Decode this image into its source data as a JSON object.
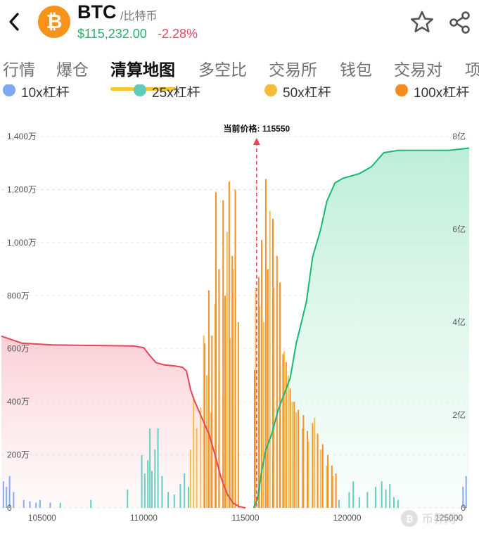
{
  "header": {
    "symbol": "BTC",
    "name": "/比特币",
    "price": "$115,232.00",
    "change": "-2.28%",
    "coin_color": "#f7931a",
    "up_color": "#27b06e",
    "down_color": "#e84a5f",
    "icons": [
      "back-icon",
      "bitcoin-icon",
      "star-icon",
      "share-icon"
    ]
  },
  "tabs": {
    "items": [
      "行情",
      "爆仓",
      "清算地图",
      "多空比",
      "交易所",
      "钱包",
      "交易对",
      "项"
    ],
    "active": "清算地图",
    "active_color": "#f5c832"
  },
  "legend": [
    {
      "label": "10x杠杆",
      "color": "#7fa8f0"
    },
    {
      "label": "25x杠杆",
      "color": "#5fcbbf"
    },
    {
      "label": "50x杠杆",
      "color": "#f6bb3c"
    },
    {
      "label": "100x杠杆",
      "color": "#f58a1e"
    }
  ],
  "chart_data": {
    "type": "bar",
    "current_price_label": "当前价格: 115550",
    "current_price": 115550,
    "x_ticks": [
      "105000",
      "110000",
      "115000",
      "120000",
      "125000"
    ],
    "xlim": [
      103000,
      126000
    ],
    "y_left_ticks": [
      "0",
      "200万",
      "400万",
      "600万",
      "800万",
      "1,000万",
      "1,200万",
      "1,400万"
    ],
    "ylim_left": [
      0,
      14000000
    ],
    "y_right_ticks": [
      "0",
      "2亿",
      "4亿",
      "6亿",
      "8亿"
    ],
    "ylim_right": [
      0,
      800000000
    ],
    "grid": true,
    "legend_position": "top",
    "cumulative_long_color": "#e8455a",
    "cumulative_short_color": "#19b874",
    "cumulative_long": [
      [
        103000,
        370000000
      ],
      [
        104000,
        355000000
      ],
      [
        105500,
        351000000
      ],
      [
        107500,
        350000000
      ],
      [
        109500,
        349000000
      ],
      [
        110000,
        345000000
      ],
      [
        110300,
        328000000
      ],
      [
        110600,
        313000000
      ],
      [
        111000,
        308000000
      ],
      [
        111500,
        306000000
      ],
      [
        111900,
        303000000
      ],
      [
        112100,
        295000000
      ],
      [
        112300,
        255000000
      ],
      [
        112500,
        230000000
      ],
      [
        112800,
        200000000
      ],
      [
        113200,
        160000000
      ],
      [
        113500,
        115000000
      ],
      [
        113800,
        65000000
      ],
      [
        114100,
        30000000
      ],
      [
        114400,
        10000000
      ],
      [
        114700,
        3000000
      ],
      [
        115000,
        0
      ]
    ],
    "cumulative_short": [
      [
        115400,
        0
      ],
      [
        115600,
        20000000
      ],
      [
        115800,
        80000000
      ],
      [
        116000,
        125000000
      ],
      [
        116300,
        160000000
      ],
      [
        116600,
        210000000
      ],
      [
        116900,
        245000000
      ],
      [
        117200,
        280000000
      ],
      [
        117500,
        355000000
      ],
      [
        117700,
        390000000
      ],
      [
        118000,
        445000000
      ],
      [
        118300,
        540000000
      ],
      [
        118700,
        600000000
      ],
      [
        119000,
        660000000
      ],
      [
        119400,
        700000000
      ],
      [
        119800,
        710000000
      ],
      [
        120600,
        720000000
      ],
      [
        121200,
        735000000
      ],
      [
        121800,
        765000000
      ],
      [
        122500,
        770000000
      ],
      [
        125000,
        770000000
      ],
      [
        126000,
        775000000
      ]
    ],
    "series": [
      {
        "name": "10x杠杆",
        "color": "#7fa8f0",
        "values": [
          [
            103100,
            1000000
          ],
          [
            103250,
            800000
          ],
          [
            103400,
            1200000
          ],
          [
            103600,
            600000
          ],
          [
            104100,
            300000
          ],
          [
            104400,
            250000
          ],
          [
            104700,
            200000
          ],
          [
            104900,
            300000
          ],
          [
            105400,
            200000
          ],
          [
            125700,
            800000
          ],
          [
            125850,
            1200000
          ]
        ]
      },
      {
        "name": "25x杠杆",
        "color": "#5fcbbf",
        "values": [
          [
            105900,
            200000
          ],
          [
            107400,
            300000
          ],
          [
            109200,
            700000
          ],
          [
            109900,
            2000000
          ],
          [
            110050,
            1300000
          ],
          [
            110200,
            1800000
          ],
          [
            110300,
            3000000
          ],
          [
            110400,
            1400000
          ],
          [
            110550,
            2200000
          ],
          [
            110700,
            3000000
          ],
          [
            110900,
            1200000
          ],
          [
            111200,
            600000
          ],
          [
            111500,
            500000
          ],
          [
            111800,
            900000
          ],
          [
            112000,
            1300000
          ],
          [
            112200,
            800000
          ],
          [
            119600,
            300000
          ],
          [
            120100,
            600000
          ],
          [
            120300,
            1000000
          ],
          [
            120600,
            400000
          ],
          [
            121000,
            600000
          ],
          [
            121400,
            800000
          ],
          [
            121700,
            1000000
          ],
          [
            121900,
            700000
          ],
          [
            122100,
            900000
          ],
          [
            122300,
            400000
          ],
          [
            122500,
            300000
          ]
        ]
      },
      {
        "name": "50x杠杆",
        "color": "#f6bb3c",
        "values": [
          [
            112300,
            2200000
          ],
          [
            112450,
            4200000
          ],
          [
            112600,
            3000000
          ],
          [
            112800,
            3800000
          ],
          [
            112950,
            6500000
          ],
          [
            113100,
            5000000
          ],
          [
            113300,
            3600000
          ],
          [
            113500,
            7700000
          ],
          [
            113700,
            5200000
          ],
          [
            113900,
            4200000
          ],
          [
            114100,
            10400000
          ],
          [
            114250,
            6400000
          ],
          [
            114400,
            9000000
          ],
          [
            115500,
            8300000
          ],
          [
            115700,
            7600000
          ],
          [
            115900,
            7000000
          ],
          [
            116200,
            11200000
          ],
          [
            116400,
            8300000
          ],
          [
            116700,
            5200000
          ],
          [
            116900,
            5900000
          ],
          [
            117100,
            5000000
          ],
          [
            117300,
            4000000
          ],
          [
            117500,
            3600000
          ],
          [
            117800,
            3000000
          ],
          [
            118100,
            2500000
          ],
          [
            118400,
            3400000
          ],
          [
            118700,
            2200000
          ],
          [
            119000,
            1600000
          ],
          [
            119300,
            1200000
          ]
        ]
      },
      {
        "name": "100x杠杆",
        "color": "#f58a1e",
        "values": [
          [
            113000,
            6200000
          ],
          [
            113200,
            8200000
          ],
          [
            113350,
            6500000
          ],
          [
            113550,
            11900000
          ],
          [
            113700,
            9000000
          ],
          [
            113900,
            11600000
          ],
          [
            114000,
            8000000
          ],
          [
            114200,
            12300000
          ],
          [
            114350,
            9500000
          ],
          [
            114500,
            12000000
          ],
          [
            114650,
            7000000
          ],
          [
            115450,
            5200000
          ],
          [
            115650,
            8700000
          ],
          [
            115800,
            10100000
          ],
          [
            116000,
            12400000
          ],
          [
            116100,
            9000000
          ],
          [
            116350,
            10900000
          ],
          [
            116550,
            9500000
          ],
          [
            116700,
            8500000
          ],
          [
            116850,
            5800000
          ],
          [
            117000,
            5500000
          ],
          [
            117200,
            4500000
          ],
          [
            117400,
            4000000
          ],
          [
            117600,
            3700000
          ],
          [
            117850,
            3500000
          ],
          [
            118050,
            2900000
          ],
          [
            118300,
            3200000
          ],
          [
            118550,
            2800000
          ],
          [
            118800,
            2400000
          ],
          [
            119050,
            2000000
          ],
          [
            119250,
            1600000
          ],
          [
            119450,
            1300000
          ]
        ]
      }
    ]
  },
  "watermark": "币界网"
}
